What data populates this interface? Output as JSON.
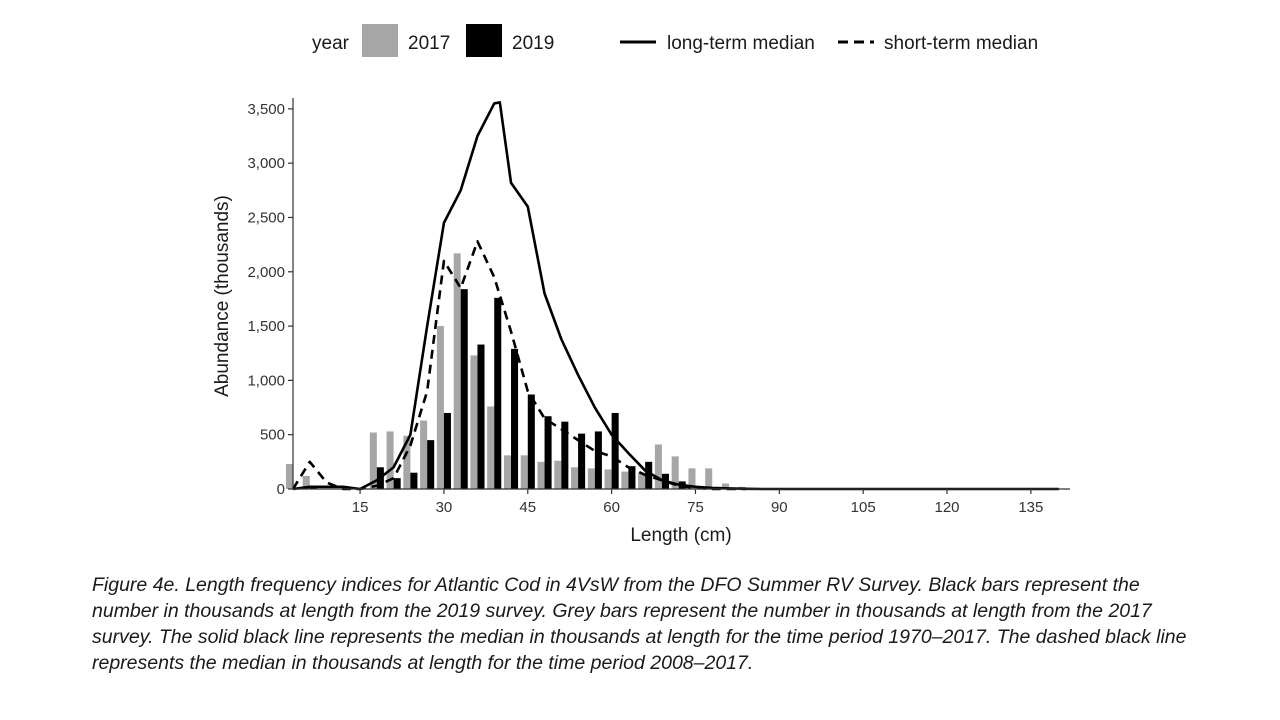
{
  "legend": {
    "title": "year",
    "bar_2017": "2017",
    "bar_2019": "2019",
    "line_long": "long-term median",
    "line_short": "short-term median"
  },
  "chart_data": {
    "type": "bar",
    "xlabel": "Length (cm)",
    "ylabel": "Abundance (thousands)",
    "x_ticks": [
      15,
      30,
      45,
      60,
      75,
      90,
      105,
      120,
      135
    ],
    "y_ticks": [
      0,
      500,
      1000,
      1500,
      2000,
      2500,
      3000,
      3500
    ],
    "y_tick_labels": [
      "0",
      "500",
      "1,000",
      "1,500",
      "2,000",
      "2,500",
      "3,000",
      "3,500"
    ],
    "xlim": [
      3,
      142
    ],
    "ylim": [
      0,
      3600
    ],
    "grid": false,
    "legend_position": "top",
    "lengths": [
      3,
      6,
      9,
      12,
      15,
      18,
      21,
      24,
      27,
      30,
      33,
      36,
      39,
      42,
      45,
      48,
      51,
      54,
      57,
      60,
      63,
      66,
      69,
      72,
      75,
      78,
      81,
      84,
      87
    ],
    "series": [
      {
        "name": "2017",
        "color": "#a6a6a6",
        "values": [
          230,
          120,
          0,
          0,
          0,
          520,
          530,
          490,
          630,
          1500,
          2170,
          1230,
          760,
          310,
          310,
          250,
          260,
          200,
          190,
          180,
          160,
          150,
          410,
          300,
          190,
          190,
          50,
          20,
          0
        ]
      },
      {
        "name": "2019",
        "color": "#000000",
        "values": [
          10,
          10,
          0,
          0,
          0,
          200,
          100,
          150,
          450,
          700,
          1840,
          1330,
          1760,
          1290,
          870,
          670,
          620,
          510,
          530,
          700,
          210,
          250,
          140,
          70,
          0,
          0,
          0,
          0,
          0
        ]
      }
    ],
    "lines": [
      {
        "name": "long-term median",
        "style": "solid",
        "x": [
          3,
          6,
          9,
          12,
          15,
          18,
          21,
          24,
          27,
          30,
          33,
          36,
          39,
          40,
          42,
          45,
          48,
          51,
          54,
          57,
          60,
          63,
          66,
          69,
          72,
          75,
          78,
          81,
          84,
          87,
          90,
          100,
          110,
          120,
          130,
          140
        ],
        "y": [
          0,
          20,
          20,
          20,
          0,
          80,
          200,
          500,
          1500,
          2450,
          2750,
          3250,
          3550,
          3560,
          2820,
          2600,
          1800,
          1380,
          1050,
          750,
          500,
          330,
          170,
          80,
          40,
          20,
          10,
          5,
          2,
          0,
          0,
          0,
          0,
          0,
          0,
          0
        ]
      },
      {
        "name": "short-term median",
        "style": "dashed",
        "x": [
          3,
          6,
          9,
          12,
          15,
          18,
          21,
          24,
          27,
          30,
          33,
          36,
          39,
          42,
          45,
          48,
          51,
          54,
          57,
          60,
          63,
          66,
          69,
          72,
          75,
          78,
          81,
          84
        ],
        "y": [
          0,
          250,
          60,
          0,
          0,
          30,
          100,
          400,
          900,
          2100,
          1850,
          2280,
          1950,
          1450,
          900,
          650,
          550,
          450,
          350,
          300,
          200,
          130,
          80,
          30,
          10,
          0,
          0,
          0
        ]
      }
    ]
  },
  "caption": "Figure 4e. Length frequency indices for Atlantic Cod in 4VsW from the DFO Summer RV Survey. Black bars represent the number in thousands at length from the 2019 survey. Grey bars represent the number in thousands at length from the 2017 survey. The solid black line represents the median in thousands at length for the time period 1970–2017. The dashed black line represents the median in thousands at length for the time period 2008–2017."
}
